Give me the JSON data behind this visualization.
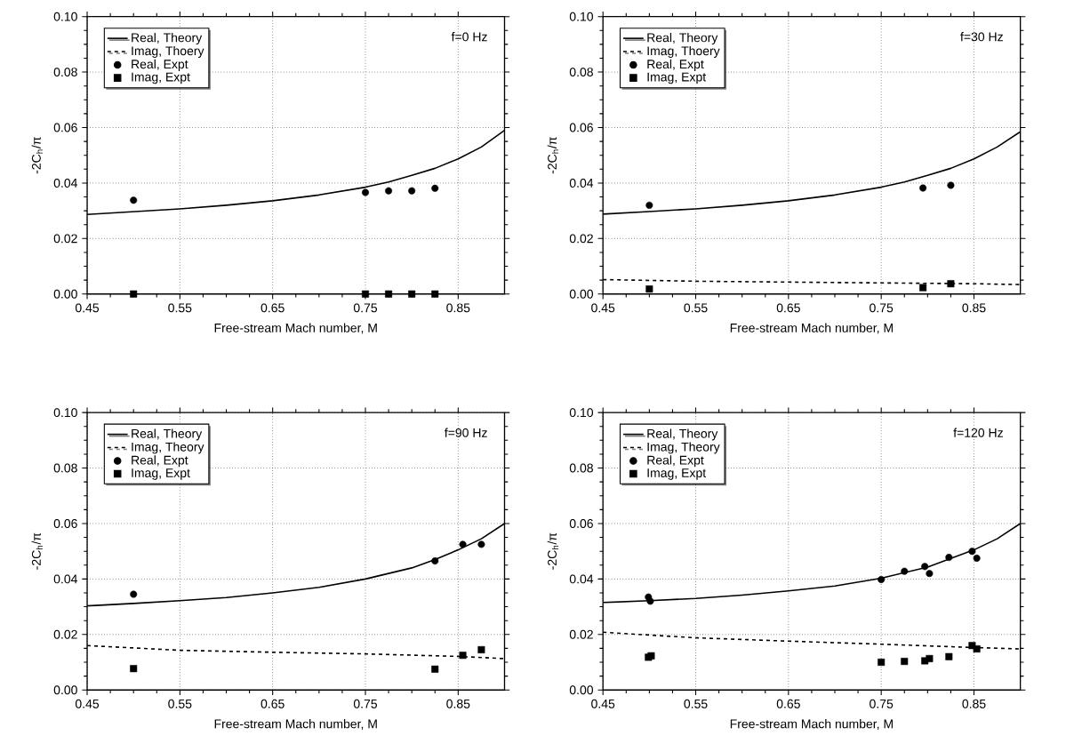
{
  "chart_data": [
    {
      "type": "line",
      "title": "f=0 Hz",
      "xlabel": "Free-stream Mach number, M",
      "ylabel": "-2C$_{h}$/π",
      "xlim": [
        0.45,
        0.9
      ],
      "ylim": [
        0,
        0.1
      ],
      "xticks": [
        0.45,
        0.55,
        0.65,
        0.75,
        0.85
      ],
      "yticks": [
        {
          "value": 0,
          "label": "0.00"
        },
        {
          "value": 0.02,
          "label": "0.02"
        },
        {
          "value": 0.04,
          "label": "0.04"
        },
        {
          "value": 0.06,
          "label": "0.06"
        },
        {
          "value": 0.08,
          "label": "0.08"
        },
        {
          "value": 0.1,
          "label": "0.10"
        }
      ],
      "grid": true,
      "legend": "top left",
      "series": [
        {
          "name": "Real, Theory",
          "line_style": "solid",
          "color": "#000000",
          "x": [
            0.45,
            0.5,
            0.55,
            0.6,
            0.65,
            0.7,
            0.75,
            0.775,
            0.8,
            0.825,
            0.85,
            0.875,
            0.9
          ],
          "values": [
            0.0287,
            0.0297,
            0.0307,
            0.032,
            0.0336,
            0.0357,
            0.0385,
            0.0404,
            0.0428,
            0.0453,
            0.0487,
            0.053,
            0.059
          ]
        },
        {
          "name": "Imag, Thoery",
          "line_style": "dashed",
          "color": "#000000",
          "x": [
            0.45,
            0.9
          ],
          "values": [
            0,
            0
          ]
        },
        {
          "name": "Real, Expt",
          "type": "scatter",
          "marker": "circle",
          "color": "#000000",
          "x": [
            0.5,
            0.75,
            0.775,
            0.8,
            0.825
          ],
          "values": [
            0.0338,
            0.0366,
            0.0372,
            0.0372,
            0.0381
          ]
        },
        {
          "name": "Imag, Expt",
          "type": "scatter",
          "marker": "square",
          "color": "#000000",
          "x": [
            0.5,
            0.75,
            0.775,
            0.8,
            0.825
          ],
          "values": [
            0,
            0,
            0,
            0,
            0
          ]
        }
      ]
    },
    {
      "type": "line",
      "title": "f=30 Hz",
      "xlabel": "Free-stream Mach number, M",
      "ylabel": "-2C$_{h}$/π",
      "xlim": [
        0.45,
        0.9
      ],
      "ylim": [
        0,
        0.1
      ],
      "xticks": [
        0.45,
        0.55,
        0.65,
        0.75,
        0.85
      ],
      "yticks": [
        {
          "value": 0,
          "label": "0.00"
        },
        {
          "value": 0.02,
          "label": "0.02"
        },
        {
          "value": 0.04,
          "label": "0.04"
        },
        {
          "value": 0.06,
          "label": "0.06"
        },
        {
          "value": 0.08,
          "label": "0.08"
        },
        {
          "value": 0.1,
          "label": "0.10"
        }
      ],
      "grid": true,
      "legend": "top left",
      "series": [
        {
          "name": "Real, Theory",
          "line_style": "solid",
          "color": "#000000",
          "x": [
            0.45,
            0.5,
            0.55,
            0.6,
            0.65,
            0.7,
            0.75,
            0.775,
            0.8,
            0.825,
            0.85,
            0.875,
            0.9
          ],
          "values": [
            0.0288,
            0.0297,
            0.0307,
            0.032,
            0.0336,
            0.0357,
            0.0385,
            0.0404,
            0.0428,
            0.0453,
            0.0487,
            0.053,
            0.0585
          ]
        },
        {
          "name": "Imag, Thoery",
          "line_style": "dashed",
          "color": "#000000",
          "x": [
            0.45,
            0.55,
            0.65,
            0.75,
            0.85,
            0.9
          ],
          "values": [
            0.0052,
            0.0046,
            0.0043,
            0.004,
            0.0037,
            0.0034
          ]
        },
        {
          "name": "Real, Expt",
          "type": "scatter",
          "marker": "circle",
          "color": "#000000",
          "x": [
            0.5,
            0.795,
            0.825
          ],
          "values": [
            0.032,
            0.0382,
            0.0392
          ]
        },
        {
          "name": "Imag, Expt",
          "type": "scatter",
          "marker": "square",
          "color": "#000000",
          "x": [
            0.5,
            0.795,
            0.825
          ],
          "values": [
            0.0018,
            0.0023,
            0.0037
          ]
        }
      ]
    },
    {
      "type": "line",
      "title": "f=90 Hz",
      "xlabel": "Free-stream Mach number, M",
      "ylabel": "-2C$_{h}$/π",
      "xlim": [
        0.45,
        0.9
      ],
      "ylim": [
        0,
        0.1
      ],
      "xticks": [
        0.45,
        0.55,
        0.65,
        0.75,
        0.85
      ],
      "yticks": [
        {
          "value": 0,
          "label": "0.00"
        },
        {
          "value": 0.02,
          "label": "0.02"
        },
        {
          "value": 0.04,
          "label": "0.04"
        },
        {
          "value": 0.06,
          "label": "0.06"
        },
        {
          "value": 0.08,
          "label": "0.08"
        },
        {
          "value": 0.1,
          "label": "0.10"
        }
      ],
      "grid": true,
      "legend": "top left",
      "series": [
        {
          "name": "Real, Theory",
          "line_style": "solid",
          "color": "#000000",
          "x": [
            0.45,
            0.5,
            0.55,
            0.6,
            0.65,
            0.7,
            0.75,
            0.8,
            0.825,
            0.85,
            0.875,
            0.9
          ],
          "values": [
            0.0303,
            0.0312,
            0.0322,
            0.0333,
            0.035,
            0.037,
            0.04,
            0.044,
            0.047,
            0.0505,
            0.0545,
            0.06
          ]
        },
        {
          "name": "Imag, Theory",
          "line_style": "dashed",
          "color": "#000000",
          "x": [
            0.45,
            0.55,
            0.65,
            0.75,
            0.85,
            0.9
          ],
          "values": [
            0.016,
            0.0143,
            0.0136,
            0.013,
            0.0121,
            0.0113
          ]
        },
        {
          "name": "Real, Expt",
          "type": "scatter",
          "marker": "circle",
          "color": "#000000",
          "x": [
            0.5,
            0.825,
            0.855,
            0.875
          ],
          "values": [
            0.0345,
            0.0465,
            0.0525,
            0.0525
          ]
        },
        {
          "name": "Imag, Expt",
          "type": "scatter",
          "marker": "square",
          "color": "#000000",
          "x": [
            0.5,
            0.825,
            0.855,
            0.875
          ],
          "values": [
            0.0077,
            0.0075,
            0.0125,
            0.0145
          ]
        }
      ]
    },
    {
      "type": "line",
      "title": "f=120 Hz",
      "xlabel": "Free-stream Mach number, M",
      "ylabel": "-2C$_{h}$/π",
      "xlim": [
        0.45,
        0.9
      ],
      "ylim": [
        0,
        0.1
      ],
      "xticks": [
        0.45,
        0.55,
        0.65,
        0.75,
        0.85
      ],
      "yticks": [
        {
          "value": 0,
          "label": "0.00"
        },
        {
          "value": 0.02,
          "label": "0.02"
        },
        {
          "value": 0.04,
          "label": "0.04"
        },
        {
          "value": 0.06,
          "label": "0.06"
        },
        {
          "value": 0.08,
          "label": "0.08"
        },
        {
          "value": 0.1,
          "label": "0.10"
        }
      ],
      "grid": true,
      "legend": "top left",
      "series": [
        {
          "name": "Real, Theory",
          "line_style": "solid",
          "color": "#000000",
          "x": [
            0.45,
            0.5,
            0.55,
            0.6,
            0.65,
            0.7,
            0.75,
            0.8,
            0.85,
            0.875,
            0.9
          ],
          "values": [
            0.0315,
            0.0322,
            0.033,
            0.0342,
            0.0357,
            0.0375,
            0.0403,
            0.0443,
            0.0505,
            0.0545,
            0.06
          ]
        },
        {
          "name": "Imag, Theory",
          "line_style": "dashed",
          "color": "#000000",
          "x": [
            0.45,
            0.55,
            0.65,
            0.75,
            0.85,
            0.9
          ],
          "values": [
            0.0208,
            0.0188,
            0.0176,
            0.0165,
            0.0153,
            0.0148
          ]
        },
        {
          "name": "Real, Expt",
          "type": "scatter",
          "marker": "circle",
          "color": "#000000",
          "x": [
            0.499,
            0.501,
            0.75,
            0.775,
            0.797,
            0.802,
            0.823,
            0.848,
            0.853
          ],
          "values": [
            0.0335,
            0.032,
            0.0398,
            0.0428,
            0.0445,
            0.042,
            0.0478,
            0.05,
            0.0475
          ]
        },
        {
          "name": "Imag, Expt",
          "type": "scatter",
          "marker": "square",
          "color": "#000000",
          "x": [
            0.499,
            0.502,
            0.75,
            0.775,
            0.797,
            0.802,
            0.823,
            0.848,
            0.853
          ],
          "values": [
            0.0118,
            0.0123,
            0.01,
            0.0103,
            0.0105,
            0.0113,
            0.012,
            0.016,
            0.0148
          ]
        }
      ]
    }
  ]
}
